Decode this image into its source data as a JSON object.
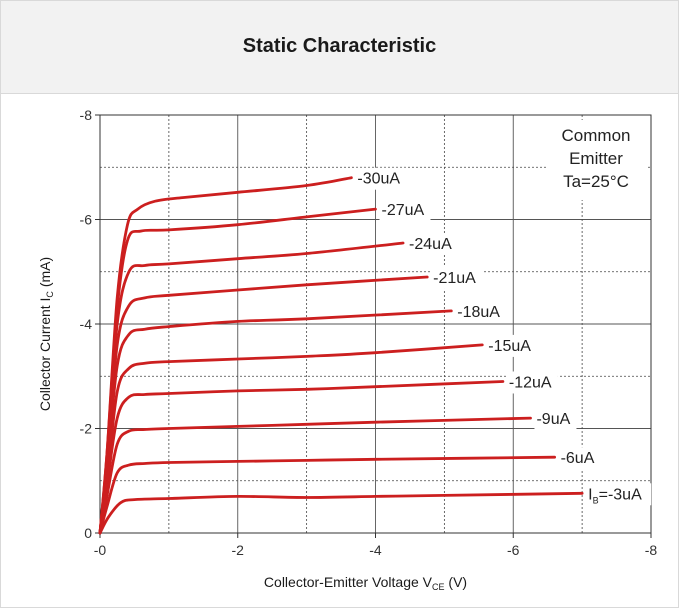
{
  "chart_data": {
    "type": "line",
    "title": "Static Characteristic",
    "xlabel": "Collector-Emitter Voltage V",
    "xlabel_sub": "CE",
    "xlabel_unit": "(V)",
    "ylabel": "Collector Current I",
    "ylabel_sub": "C",
    "ylabel_unit": "(mA)",
    "xlim": [
      0,
      -8
    ],
    "ylim": [
      0,
      -8
    ],
    "x_ticks": [
      "-0",
      "-2",
      "-4",
      "-6",
      "-8"
    ],
    "y_ticks": [
      "0",
      "-2",
      "-4",
      "-6",
      "-8"
    ],
    "annotation": [
      "Common",
      "Emitter",
      "Ta=25°C"
    ],
    "series": [
      {
        "name": "-30uA",
        "label": "-30uA",
        "points": [
          [
            0,
            0
          ],
          [
            -0.1,
            -1.5
          ],
          [
            -0.25,
            -4.5
          ],
          [
            -0.4,
            -5.9
          ],
          [
            -0.55,
            -6.2
          ],
          [
            -0.8,
            -6.35
          ],
          [
            -1.2,
            -6.42
          ],
          [
            -2,
            -6.52
          ],
          [
            -3,
            -6.65
          ],
          [
            -3.65,
            -6.8
          ]
        ]
      },
      {
        "name": "-27uA",
        "label": "-27uA",
        "points": [
          [
            0,
            0
          ],
          [
            -0.1,
            -1.5
          ],
          [
            -0.25,
            -4.3
          ],
          [
            -0.4,
            -5.6
          ],
          [
            -0.6,
            -5.78
          ],
          [
            -1,
            -5.8
          ],
          [
            -2,
            -5.9
          ],
          [
            -3,
            -6.05
          ],
          [
            -4,
            -6.2
          ]
        ]
      },
      {
        "name": "-24uA",
        "label": "-24uA",
        "points": [
          [
            0,
            0
          ],
          [
            -0.1,
            -1.4
          ],
          [
            -0.25,
            -4.0
          ],
          [
            -0.42,
            -5.0
          ],
          [
            -0.65,
            -5.12
          ],
          [
            -1,
            -5.15
          ],
          [
            -2,
            -5.25
          ],
          [
            -3,
            -5.35
          ],
          [
            -4.4,
            -5.55
          ]
        ]
      },
      {
        "name": "-21uA",
        "label": "-21uA",
        "points": [
          [
            0,
            0
          ],
          [
            -0.1,
            -1.3
          ],
          [
            -0.25,
            -3.6
          ],
          [
            -0.42,
            -4.35
          ],
          [
            -0.65,
            -4.5
          ],
          [
            -1,
            -4.55
          ],
          [
            -2,
            -4.65
          ],
          [
            -3,
            -4.75
          ],
          [
            -4.75,
            -4.9
          ]
        ]
      },
      {
        "name": "-18uA",
        "label": "-18uA",
        "points": [
          [
            0,
            0
          ],
          [
            -0.1,
            -1.2
          ],
          [
            -0.25,
            -3.2
          ],
          [
            -0.42,
            -3.8
          ],
          [
            -0.65,
            -3.9
          ],
          [
            -1,
            -3.95
          ],
          [
            -2,
            -4.05
          ],
          [
            -3,
            -4.1
          ],
          [
            -5.1,
            -4.25
          ]
        ]
      },
      {
        "name": "-15uA",
        "label": "-15uA",
        "points": [
          [
            0,
            0
          ],
          [
            -0.1,
            -1.0
          ],
          [
            -0.25,
            -2.7
          ],
          [
            -0.42,
            -3.15
          ],
          [
            -0.65,
            -3.25
          ],
          [
            -1,
            -3.28
          ],
          [
            -2,
            -3.33
          ],
          [
            -3,
            -3.38
          ],
          [
            -4,
            -3.45
          ],
          [
            -5.55,
            -3.6
          ]
        ]
      },
      {
        "name": "-12uA",
        "label": "-12uA",
        "points": [
          [
            0,
            0
          ],
          [
            -0.1,
            -0.9
          ],
          [
            -0.25,
            -2.2
          ],
          [
            -0.42,
            -2.6
          ],
          [
            -0.65,
            -2.65
          ],
          [
            -1,
            -2.67
          ],
          [
            -2,
            -2.72
          ],
          [
            -3,
            -2.75
          ],
          [
            -4,
            -2.8
          ],
          [
            -5.85,
            -2.9
          ]
        ]
      },
      {
        "name": "-9uA",
        "label": "-9uA",
        "points": [
          [
            0,
            0
          ],
          [
            -0.1,
            -0.7
          ],
          [
            -0.25,
            -1.7
          ],
          [
            -0.42,
            -1.95
          ],
          [
            -0.65,
            -1.98
          ],
          [
            -1,
            -2.0
          ],
          [
            -2,
            -2.04
          ],
          [
            -3,
            -2.08
          ],
          [
            -4,
            -2.12
          ],
          [
            -6.25,
            -2.2
          ]
        ]
      },
      {
        "name": "-6uA",
        "label": "-6uA",
        "points": [
          [
            0,
            0
          ],
          [
            -0.1,
            -0.5
          ],
          [
            -0.25,
            -1.15
          ],
          [
            -0.42,
            -1.3
          ],
          [
            -0.65,
            -1.33
          ],
          [
            -1,
            -1.35
          ],
          [
            -2,
            -1.37
          ],
          [
            -3,
            -1.39
          ],
          [
            -4,
            -1.41
          ],
          [
            -6.6,
            -1.45
          ]
        ]
      },
      {
        "name": "IB=-3uA",
        "label": "=-3uA",
        "label_prefix": "I",
        "label_sub": "B",
        "points": [
          [
            0,
            0
          ],
          [
            -0.12,
            -0.3
          ],
          [
            -0.3,
            -0.58
          ],
          [
            -0.5,
            -0.64
          ],
          [
            -1,
            -0.66
          ],
          [
            -2,
            -0.7
          ],
          [
            -3,
            -0.68
          ],
          [
            -4,
            -0.7
          ],
          [
            -5,
            -0.72
          ],
          [
            -7,
            -0.76
          ]
        ]
      }
    ],
    "grid": true,
    "line_color": "#cc1f1f"
  }
}
